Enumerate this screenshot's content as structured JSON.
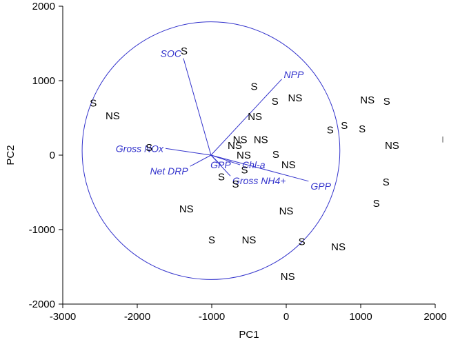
{
  "chart_data": {
    "type": "scatter",
    "title": "",
    "xlabel": "PC1",
    "ylabel": "PC2",
    "xlim": [
      -3000,
      2000
    ],
    "ylim": [
      -2000,
      2000
    ],
    "xticks": [
      "-3000",
      "-2000",
      "-1000",
      "0",
      "1000",
      "2000"
    ],
    "yticks": [
      "-2000",
      "-1000",
      "0",
      "1000",
      "2000"
    ],
    "grid": false,
    "colors": {
      "points": "#000000",
      "vectors": "#3333cc",
      "axes": "#000000"
    },
    "circle": {
      "cx": -1010,
      "cy": 60,
      "r": 1730
    },
    "vector_origin": {
      "x": -1010,
      "y": 0
    },
    "vectors": [
      {
        "name": "SOC",
        "x": -1380,
        "y": 1300
      },
      {
        "name": "NPP",
        "x": -60,
        "y": 1020
      },
      {
        "name": "Gross NOx",
        "x": -1620,
        "y": 90
      },
      {
        "name": "Net DRP",
        "x": -1290,
        "y": -150
      },
      {
        "name": "GPP",
        "x": 300,
        "y": -350
      },
      {
        "name": "Chl-a",
        "x": -620,
        "y": -130
      },
      {
        "name": "GPP",
        "x": -880,
        "y": -130
      },
      {
        "name": "Gross NH4+",
        "x": -750,
        "y": -280
      }
    ],
    "points": [
      {
        "x": -1370,
        "y": 1400,
        "label": "S"
      },
      {
        "x": -2590,
        "y": 700,
        "label": "S"
      },
      {
        "x": -2330,
        "y": 530,
        "label": "NS"
      },
      {
        "x": -1840,
        "y": 100,
        "label": "S"
      },
      {
        "x": -430,
        "y": 920,
        "label": "S"
      },
      {
        "x": -150,
        "y": 720,
        "label": "S"
      },
      {
        "x": 120,
        "y": 770,
        "label": "NS"
      },
      {
        "x": -420,
        "y": 520,
        "label": "NS"
      },
      {
        "x": 590,
        "y": 340,
        "label": "S"
      },
      {
        "x": 780,
        "y": 400,
        "label": "S"
      },
      {
        "x": 1020,
        "y": 350,
        "label": "S"
      },
      {
        "x": 1090,
        "y": 740,
        "label": "NS"
      },
      {
        "x": 1350,
        "y": 720,
        "label": "S"
      },
      {
        "x": 1420,
        "y": 130,
        "label": "NS"
      },
      {
        "x": -620,
        "y": 210,
        "label": "NS"
      },
      {
        "x": -340,
        "y": 210,
        "label": "NS"
      },
      {
        "x": -690,
        "y": 130,
        "label": "NS"
      },
      {
        "x": -570,
        "y": 0,
        "label": "NS"
      },
      {
        "x": -140,
        "y": 10,
        "label": "S"
      },
      {
        "x": 30,
        "y": -130,
        "label": "NS"
      },
      {
        "x": -560,
        "y": -200,
        "label": "S"
      },
      {
        "x": -870,
        "y": -290,
        "label": "S"
      },
      {
        "x": -680,
        "y": -390,
        "label": "S"
      },
      {
        "x": 1340,
        "y": -360,
        "label": "S"
      },
      {
        "x": 1210,
        "y": -650,
        "label": "S"
      },
      {
        "x": -1340,
        "y": -720,
        "label": "NS"
      },
      {
        "x": 0,
        "y": -750,
        "label": "NS"
      },
      {
        "x": -1000,
        "y": -1140,
        "label": "S"
      },
      {
        "x": -500,
        "y": -1140,
        "label": "NS"
      },
      {
        "x": 210,
        "y": -1160,
        "label": "S"
      },
      {
        "x": 700,
        "y": -1230,
        "label": "NS"
      },
      {
        "x": 20,
        "y": -1630,
        "label": "NS"
      }
    ]
  }
}
